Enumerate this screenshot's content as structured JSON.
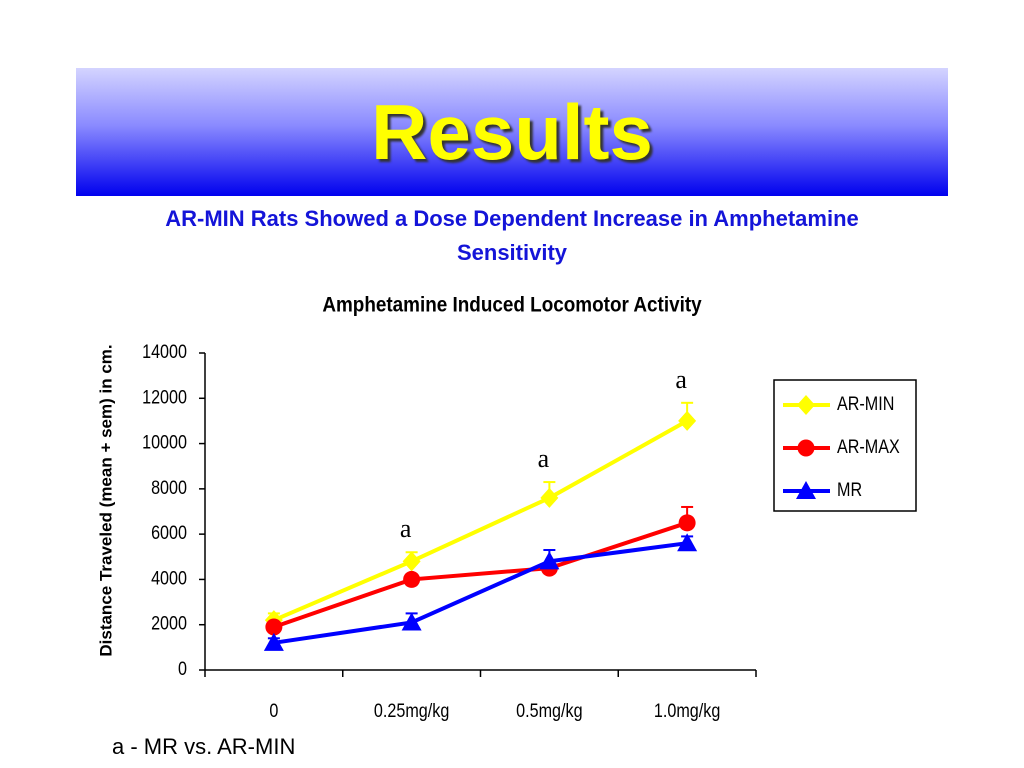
{
  "header": {
    "title": "Results",
    "subtitle": "AR-MIN Rats Showed a Dose Dependent Increase in Amphetamine Sensitivity"
  },
  "chart_data": {
    "type": "line",
    "title": "Amphetamine Induced Locomotor Activity",
    "y_label": "Distance Traveled (mean + sem) in cm.",
    "categories": [
      "0",
      "0.25mg/kg",
      "0.5mg/kg",
      "1.0mg/kg"
    ],
    "series": [
      {
        "name": "AR-MIN",
        "color": "#ffff00",
        "marker": "diamond",
        "values": [
          2200,
          4800,
          7600,
          11000
        ],
        "errors": [
          300,
          400,
          700,
          800
        ]
      },
      {
        "name": "AR-MAX",
        "color": "#ff0000",
        "marker": "circle",
        "values": [
          1900,
          4000,
          4500,
          6500
        ],
        "errors": [
          200,
          200,
          200,
          700
        ]
      },
      {
        "name": "MR",
        "color": "#0000ff",
        "marker": "triangle",
        "values": [
          1200,
          2100,
          4800,
          5600
        ],
        "errors": [
          200,
          400,
          500,
          300
        ]
      }
    ],
    "ylim": [
      0,
      14000
    ],
    "yticks": [
      0,
      2000,
      4000,
      6000,
      8000,
      10000,
      12000,
      14000
    ],
    "annotations": [
      {
        "text": "a",
        "category": "0.25mg/kg"
      },
      {
        "text": "a",
        "category": "0.5mg/kg"
      },
      {
        "text": "a",
        "category": "1.0mg/kg"
      }
    ],
    "legend": "right"
  },
  "footnote": "a - MR vs. AR-MIN"
}
